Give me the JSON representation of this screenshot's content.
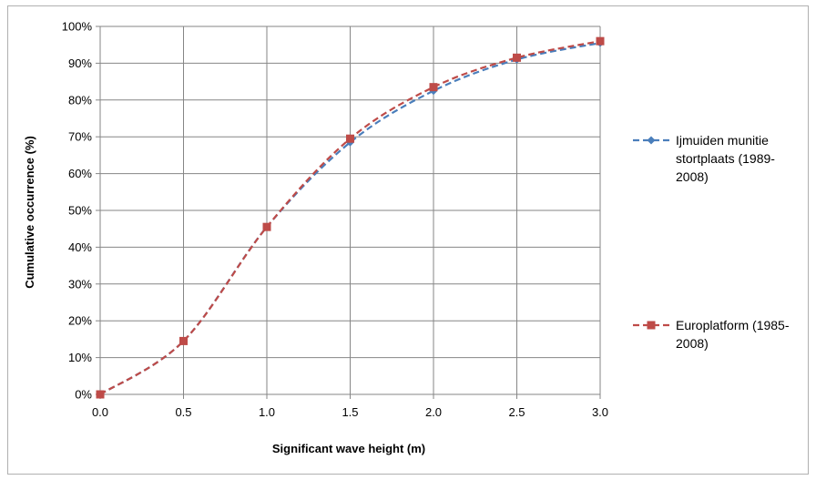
{
  "chart_data": {
    "type": "line",
    "title": "",
    "xlabel": "Significant  wave height (m)",
    "ylabel": "Cumulative occurrence (%)",
    "xlim": [
      0,
      3
    ],
    "ylim": [
      0,
      100
    ],
    "x_ticks": [
      "0.0",
      "0.5",
      "1.0",
      "1.5",
      "2.0",
      "2.5",
      "3.0"
    ],
    "y_ticks": [
      "0%",
      "10%",
      "20%",
      "30%",
      "40%",
      "50%",
      "60%",
      "70%",
      "80%",
      "90%",
      "100%"
    ],
    "grid": true,
    "legend_position": "right",
    "series": [
      {
        "name": "Ijmuiden munitie stortplaats (1989-2008)",
        "name_lines": [
          "Ijmuiden munitie",
          "stortplaats (1989-",
          "2008)"
        ],
        "color": "#4a7ebb",
        "marker": "diamond",
        "x": [
          0,
          0.5,
          1.0,
          1.5,
          2.0,
          2.5,
          3.0
        ],
        "y": [
          0,
          14.5,
          45.5,
          68.5,
          82.5,
          91,
          95.5
        ]
      },
      {
        "name": "Europlatform (1985-2008)",
        "name_lines": [
          "Europlatform (1985-",
          "2008)"
        ],
        "color": "#be4b48",
        "marker": "square",
        "x": [
          0,
          0.5,
          1.0,
          1.5,
          2.0,
          2.5,
          3.0
        ],
        "y": [
          0,
          14.5,
          45.5,
          69.5,
          83.5,
          91.5,
          96
        ]
      }
    ]
  }
}
